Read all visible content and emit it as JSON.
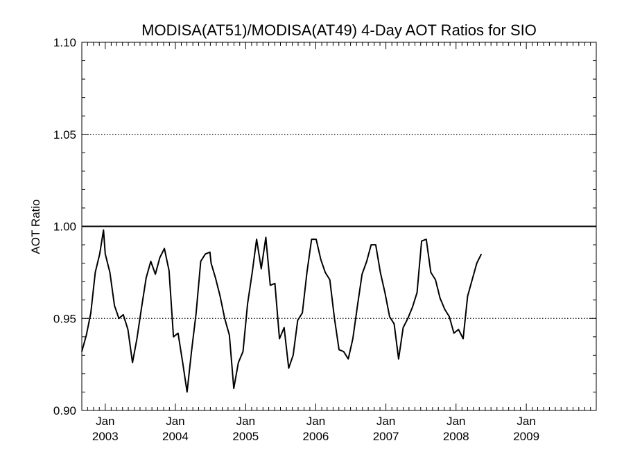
{
  "chart_data": {
    "type": "line",
    "title": "MODISA(AT51)/MODISA(AT49) 4-Day AOT Ratios for SIO",
    "ylabel": "AOT Ratio",
    "xlabel": "",
    "xlim": [
      "2002-09-01",
      "2009-12-31"
    ],
    "ylim": [
      0.9,
      1.1
    ],
    "y_ticks": [
      "0.90",
      "0.95",
      "1.00",
      "1.05",
      "1.10"
    ],
    "x_ticks": [
      {
        "month": "Jan",
        "year": "2003",
        "date": "2003-01-01"
      },
      {
        "month": "Jan",
        "year": "2004",
        "date": "2004-01-01"
      },
      {
        "month": "Jan",
        "year": "2005",
        "date": "2005-01-01"
      },
      {
        "month": "Jan",
        "year": "2006",
        "date": "2006-01-01"
      },
      {
        "month": "Jan",
        "year": "2007",
        "date": "2007-01-01"
      },
      {
        "month": "Jan",
        "year": "2008",
        "date": "2008-01-01"
      },
      {
        "month": "Jan",
        "year": "2009",
        "date": "2009-01-01"
      }
    ],
    "grid": "dotted horizontal at 0.95 and 1.05",
    "reference_line": 1.0,
    "series": [
      {
        "color": "#000000",
        "points": [
          [
            "2002-09-01",
            0.932
          ],
          [
            "2002-09-25",
            0.941
          ],
          [
            "2002-10-18",
            0.953
          ],
          [
            "2002-11-10",
            0.975
          ],
          [
            "2002-12-03",
            0.985
          ],
          [
            "2002-12-23",
            0.998
          ],
          [
            "2003-01-01",
            0.985
          ],
          [
            "2003-01-25",
            0.975
          ],
          [
            "2003-02-18",
            0.957
          ],
          [
            "2003-03-13",
            0.95
          ],
          [
            "2003-04-05",
            0.952
          ],
          [
            "2003-04-29",
            0.944
          ],
          [
            "2003-05-23",
            0.926
          ],
          [
            "2003-06-15",
            0.939
          ],
          [
            "2003-07-09",
            0.956
          ],
          [
            "2003-08-02",
            0.972
          ],
          [
            "2003-08-26",
            0.981
          ],
          [
            "2003-09-19",
            0.974
          ],
          [
            "2003-10-12",
            0.983
          ],
          [
            "2003-11-05",
            0.988
          ],
          [
            "2003-11-29",
            0.976
          ],
          [
            "2003-12-22",
            0.94
          ],
          [
            "2004-01-15",
            0.942
          ],
          [
            "2004-02-08",
            0.926
          ],
          [
            "2004-03-02",
            0.91
          ],
          [
            "2004-03-25",
            0.932
          ],
          [
            "2004-04-18",
            0.953
          ],
          [
            "2004-05-12",
            0.981
          ],
          [
            "2004-06-05",
            0.985
          ],
          [
            "2004-06-29",
            0.986
          ],
          [
            "2004-07-05",
            0.98
          ],
          [
            "2004-07-28",
            0.972
          ],
          [
            "2004-08-21",
            0.962
          ],
          [
            "2004-09-14",
            0.95
          ],
          [
            "2004-10-08",
            0.941
          ],
          [
            "2004-10-31",
            0.912
          ],
          [
            "2004-11-24",
            0.926
          ],
          [
            "2004-12-18",
            0.932
          ],
          [
            "2005-01-11",
            0.958
          ],
          [
            "2005-02-04",
            0.975
          ],
          [
            "2005-02-27",
            0.993
          ],
          [
            "2005-03-23",
            0.977
          ],
          [
            "2005-04-16",
            0.994
          ],
          [
            "2005-05-09",
            0.968
          ],
          [
            "2005-06-02",
            0.969
          ],
          [
            "2005-06-26",
            0.939
          ],
          [
            "2005-07-20",
            0.945
          ],
          [
            "2005-08-13",
            0.923
          ],
          [
            "2005-09-05",
            0.93
          ],
          [
            "2005-09-29",
            0.949
          ],
          [
            "2005-10-23",
            0.953
          ],
          [
            "2005-11-16",
            0.975
          ],
          [
            "2005-12-10",
            0.993
          ],
          [
            "2006-01-03",
            0.993
          ],
          [
            "2006-01-27",
            0.982
          ],
          [
            "2006-02-19",
            0.975
          ],
          [
            "2006-03-15",
            0.971
          ],
          [
            "2006-04-08",
            0.95
          ],
          [
            "2006-05-02",
            0.933
          ],
          [
            "2006-05-26",
            0.932
          ],
          [
            "2006-06-19",
            0.928
          ],
          [
            "2006-07-13",
            0.939
          ],
          [
            "2006-08-06",
            0.957
          ],
          [
            "2006-08-30",
            0.974
          ],
          [
            "2006-09-23",
            0.981
          ],
          [
            "2006-10-16",
            0.99
          ],
          [
            "2006-11-09",
            0.99
          ],
          [
            "2006-12-03",
            0.975
          ],
          [
            "2006-12-27",
            0.964
          ],
          [
            "2007-01-20",
            0.951
          ],
          [
            "2007-02-13",
            0.947
          ],
          [
            "2007-03-08",
            0.928
          ],
          [
            "2007-04-01",
            0.945
          ],
          [
            "2007-04-25",
            0.95
          ],
          [
            "2007-05-19",
            0.956
          ],
          [
            "2007-06-12",
            0.964
          ],
          [
            "2007-07-06",
            0.992
          ],
          [
            "2007-07-30",
            0.993
          ],
          [
            "2007-08-23",
            0.975
          ],
          [
            "2007-09-16",
            0.971
          ],
          [
            "2007-10-10",
            0.961
          ],
          [
            "2007-11-03",
            0.955
          ],
          [
            "2007-11-27",
            0.951
          ],
          [
            "2007-12-21",
            0.942
          ],
          [
            "2008-01-14",
            0.944
          ],
          [
            "2008-02-07",
            0.939
          ],
          [
            "2008-03-01",
            0.962
          ],
          [
            "2008-03-25",
            0.971
          ],
          [
            "2008-04-18",
            0.98
          ],
          [
            "2008-05-12",
            0.985
          ]
        ]
      }
    ]
  }
}
